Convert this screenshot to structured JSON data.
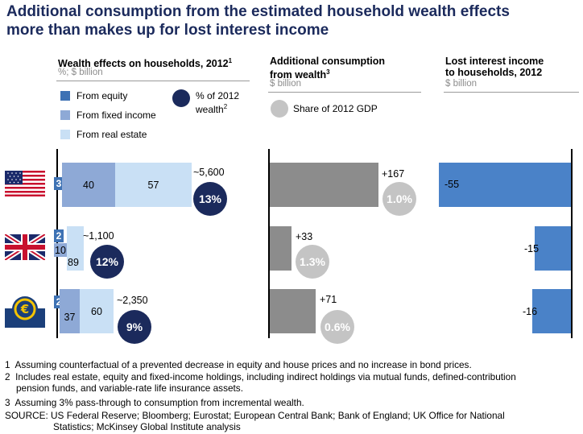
{
  "title_line1": "Additional consumption from the estimated household wealth effects",
  "title_line2": "more than makes up for lost interest income",
  "panels": {
    "wealth": {
      "title": "Wealth effects on households, 2012",
      "sup": "1",
      "unit": "%; $ billion"
    },
    "consumption": {
      "title_line1": "Additional consumption",
      "title_line2": "from wealth",
      "sup": "3",
      "unit": "$ billion"
    },
    "interest": {
      "title_line1": "Lost interest income",
      "title_line2": "to households, 2012",
      "unit": "$ billion"
    }
  },
  "legend": {
    "equity": "From equity",
    "fixed_income": "From fixed income",
    "real_estate": "From real estate",
    "pct_wealth_line1": "% of 2012",
    "pct_wealth_line2": "wealth",
    "pct_wealth_sup": "2",
    "gdp_share": "Share of 2012 GDP"
  },
  "colors": {
    "equity": "#3e72b4",
    "fixed_income": "#8ea9d6",
    "real_estate": "#c9e0f5",
    "wealth_bubble": "#1b2a5c",
    "consumption_bar": "#8c8c8c",
    "gdp_bubble": "#c4c4c4",
    "interest_bar": "#4a82c8",
    "title": "#1b2a5c"
  },
  "chart_data": {
    "type": "bar",
    "categories": [
      "United States",
      "United Kingdom",
      "Eurozone"
    ],
    "wealth_effects": {
      "series": [
        {
          "name": "From equity",
          "values": [
            3,
            2,
            2
          ]
        },
        {
          "name": "From fixed income",
          "values": [
            40,
            10,
            37
          ]
        },
        {
          "name": "From real estate",
          "values": [
            57,
            89,
            60
          ]
        }
      ],
      "total_labels": [
        "~5,600",
        "~1,100",
        "~2,350"
      ],
      "pct_of_wealth_labels": [
        "13%",
        "12%",
        "9%"
      ]
    },
    "additional_consumption": {
      "values": [
        167,
        33,
        71
      ],
      "labels": [
        "+167",
        "+33",
        "+71"
      ],
      "gdp_share_labels": [
        "1.0%",
        "1.3%",
        "0.6%"
      ]
    },
    "lost_interest_income": {
      "values": [
        -55,
        -15,
        -16
      ],
      "labels": [
        "-55",
        "-15",
        "-16"
      ]
    }
  },
  "footnotes": [
    {
      "num": "1",
      "text": "Assuming counterfactual of a prevented decrease in equity and house prices and no increase in bond prices."
    },
    {
      "num": "2",
      "text": "Includes real estate, equity and fixed-income holdings, including indirect holdings via mutual funds, defined-contribution",
      "text2": "pension funds, and variable-rate life insurance assets."
    },
    {
      "num": "3",
      "text": "Assuming 3% pass-through to consumption from incremental wealth."
    }
  ],
  "source_label": "SOURCE:",
  "source_text": "US Federal Reserve; Bloomberg; Eurostat; European Central Bank; Bank of England; UK Office for National",
  "source_text2": "Statistics; McKinsey Global Institute analysis"
}
